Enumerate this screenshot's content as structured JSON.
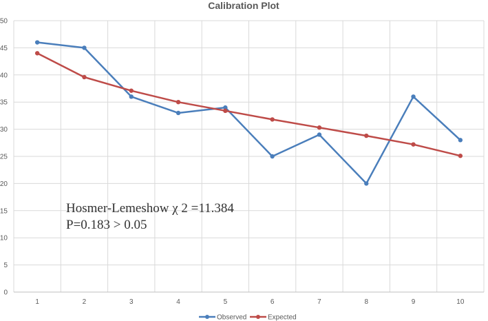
{
  "chart_data": {
    "type": "line",
    "title": "Calibration Plot",
    "xlabel": "",
    "ylabel": "",
    "categories": [
      "1",
      "2",
      "3",
      "4",
      "5",
      "6",
      "7",
      "8",
      "9",
      "10"
    ],
    "ylim": [
      0,
      50
    ],
    "yticks": [
      0,
      5,
      10,
      15,
      20,
      25,
      30,
      35,
      40,
      45,
      50
    ],
    "grid": true,
    "legend_position": "bottom",
    "series": [
      {
        "name": "Observed",
        "color": "#4A7EBB",
        "values": [
          46,
          45,
          36,
          33,
          34,
          25,
          29,
          20,
          36,
          28
        ]
      },
      {
        "name": "Expected",
        "color": "#BE4B48",
        "values": [
          44,
          39.6,
          37.1,
          35,
          33.4,
          31.8,
          30.3,
          28.8,
          27.2,
          25.1
        ]
      }
    ],
    "annotations": [
      "Hosmer-Lemeshow  χ 2 =11.384",
      "P=0.183 > 0.05"
    ]
  }
}
